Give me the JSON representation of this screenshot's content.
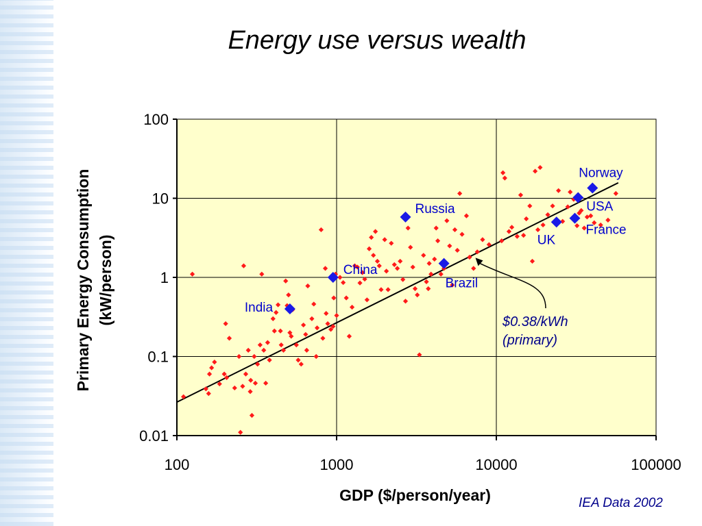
{
  "title": "Energy use versus wealth",
  "source_note": "IEA Data 2002",
  "colors": {
    "plot_background": "#ffffcc",
    "country_point": "#ff1a1a",
    "highlight_point": "#1a1ae6",
    "highlight_label": "#0000cc",
    "trend_line": "#000000"
  },
  "chart_data": {
    "type": "scatter",
    "title": "Energy use versus wealth",
    "xlabel": "GDP ($/person/year)",
    "ylabel_lines": [
      "Primary Energy Consumption",
      "(kW/person)"
    ],
    "x_scale": "log",
    "y_scale": "log",
    "xlim": [
      100,
      100000
    ],
    "ylim": [
      0.01,
      100
    ],
    "x_ticks": [
      100,
      1000,
      10000,
      100000
    ],
    "x_tick_labels": [
      "100",
      "1000",
      "10000",
      "100000"
    ],
    "y_ticks": [
      0.01,
      0.1,
      1,
      10,
      100
    ],
    "y_tick_labels": [
      "0.01",
      "0.1",
      "1",
      "10",
      "100"
    ],
    "grid": true,
    "points": [
      [
        110,
        0.031
      ],
      [
        125,
        1.1
      ],
      [
        152,
        0.039
      ],
      [
        158,
        0.034
      ],
      [
        160,
        0.06
      ],
      [
        165,
        0.072
      ],
      [
        172,
        0.085
      ],
      [
        185,
        0.045
      ],
      [
        198,
        0.06
      ],
      [
        202,
        0.26
      ],
      [
        205,
        0.054
      ],
      [
        213,
        0.17
      ],
      [
        230,
        0.04
      ],
      [
        245,
        0.1
      ],
      [
        250,
        0.011
      ],
      [
        258,
        0.042
      ],
      [
        262,
        1.4
      ],
      [
        270,
        0.06
      ],
      [
        280,
        0.12
      ],
      [
        288,
        0.036
      ],
      [
        290,
        0.05
      ],
      [
        295,
        0.018
      ],
      [
        305,
        0.1
      ],
      [
        310,
        0.046
      ],
      [
        320,
        0.08
      ],
      [
        332,
        0.14
      ],
      [
        340,
        1.1
      ],
      [
        350,
        0.12
      ],
      [
        360,
        0.046
      ],
      [
        370,
        0.15
      ],
      [
        380,
        0.09
      ],
      [
        400,
        0.3
      ],
      [
        408,
        0.21
      ],
      [
        418,
        0.36
      ],
      [
        430,
        0.45
      ],
      [
        445,
        0.21
      ],
      [
        450,
        0.14
      ],
      [
        465,
        0.12
      ],
      [
        480,
        0.9
      ],
      [
        490,
        0.44
      ],
      [
        500,
        0.6
      ],
      [
        510,
        0.2
      ],
      [
        520,
        0.18
      ],
      [
        530,
        0.39
      ],
      [
        560,
        0.14
      ],
      [
        575,
        0.09
      ],
      [
        600,
        0.08
      ],
      [
        620,
        0.25
      ],
      [
        640,
        0.19
      ],
      [
        650,
        0.12
      ],
      [
        660,
        0.78
      ],
      [
        700,
        0.3
      ],
      [
        720,
        0.46
      ],
      [
        745,
        0.1
      ],
      [
        755,
        0.23
      ],
      [
        800,
        4.0
      ],
      [
        820,
        0.17
      ],
      [
        850,
        1.3
      ],
      [
        860,
        0.35
      ],
      [
        880,
        0.26
      ],
      [
        920,
        0.22
      ],
      [
        950,
        0.24
      ],
      [
        960,
        0.55
      ],
      [
        985,
        1.1
      ],
      [
        1000,
        0.33
      ],
      [
        1050,
        1.0
      ],
      [
        1100,
        0.86
      ],
      [
        1150,
        0.55
      ],
      [
        1200,
        0.18
      ],
      [
        1250,
        0.42
      ],
      [
        1300,
        1.4
      ],
      [
        1350,
        1.35
      ],
      [
        1400,
        0.85
      ],
      [
        1450,
        1.15
      ],
      [
        1500,
        0.95
      ],
      [
        1550,
        0.52
      ],
      [
        1600,
        2.3
      ],
      [
        1650,
        3.2
      ],
      [
        1700,
        1.9
      ],
      [
        1750,
        3.8
      ],
      [
        1800,
        1.6
      ],
      [
        1850,
        1.4
      ],
      [
        1900,
        0.7
      ],
      [
        2000,
        3.0
      ],
      [
        2050,
        1.2
      ],
      [
        2100,
        0.7
      ],
      [
        2200,
        2.7
      ],
      [
        2300,
        1.45
      ],
      [
        2400,
        1.3
      ],
      [
        2500,
        1.6
      ],
      [
        2600,
        0.94
      ],
      [
        2700,
        0.5
      ],
      [
        2800,
        4.2
      ],
      [
        2900,
        2.4
      ],
      [
        3000,
        1.35
      ],
      [
        3100,
        0.72
      ],
      [
        3200,
        0.6
      ],
      [
        3300,
        0.105
      ],
      [
        3500,
        1.9
      ],
      [
        3650,
        0.88
      ],
      [
        3750,
        0.72
      ],
      [
        3800,
        1.5
      ],
      [
        3900,
        1.1
      ],
      [
        4100,
        1.7
      ],
      [
        4200,
        4.2
      ],
      [
        4300,
        2.9
      ],
      [
        4500,
        1.1
      ],
      [
        4700,
        1.3
      ],
      [
        4900,
        5.2
      ],
      [
        5100,
        2.5
      ],
      [
        5300,
        0.8
      ],
      [
        5500,
        4.0
      ],
      [
        5700,
        2.2
      ],
      [
        5900,
        11.5
      ],
      [
        6100,
        3.5
      ],
      [
        6500,
        6.0
      ],
      [
        6800,
        1.8
      ],
      [
        7200,
        1.3
      ],
      [
        7600,
        2.1
      ],
      [
        8200,
        3.0
      ],
      [
        9000,
        2.6
      ],
      [
        10800,
        2.9
      ],
      [
        11000,
        21.0
      ],
      [
        11300,
        18.0
      ],
      [
        12000,
        3.8
      ],
      [
        12500,
        4.3
      ],
      [
        13500,
        3.3
      ],
      [
        14200,
        11.0
      ],
      [
        14800,
        3.4
      ],
      [
        15400,
        5.5
      ],
      [
        16200,
        8.0
      ],
      [
        16800,
        1.6
      ],
      [
        17500,
        22.0
      ],
      [
        18200,
        4.0
      ],
      [
        18800,
        24.5
      ],
      [
        19600,
        4.6
      ],
      [
        21000,
        6.2
      ],
      [
        22500,
        8.0
      ],
      [
        24500,
        12.5
      ],
      [
        26000,
        5.1
      ],
      [
        28000,
        7.8
      ],
      [
        29000,
        12.0
      ],
      [
        30500,
        9.7
      ],
      [
        32000,
        4.5
      ],
      [
        33000,
        6.5
      ],
      [
        34000,
        7.0
      ],
      [
        35500,
        4.2
      ],
      [
        37000,
        5.8
      ],
      [
        39000,
        6.0
      ],
      [
        41000,
        4.9
      ],
      [
        45000,
        4.6
      ],
      [
        50000,
        5.3
      ],
      [
        56000,
        11.5
      ]
    ],
    "highlighted": [
      {
        "label": "India",
        "x": 510,
        "y": 0.4
      },
      {
        "label": "China",
        "x": 950,
        "y": 1.0
      },
      {
        "label": "Russia",
        "x": 2700,
        "y": 5.8
      },
      {
        "label": "Brazil",
        "x": 4700,
        "y": 1.5
      },
      {
        "label": "UK",
        "x": 23800,
        "y": 5.0
      },
      {
        "label": "France",
        "x": 31000,
        "y": 5.6
      },
      {
        "label": "USA",
        "x": 32500,
        "y": 10.2
      },
      {
        "label": "Norway",
        "x": 40000,
        "y": 13.5
      }
    ],
    "trend_line": {
      "from": [
        100,
        0.0265
      ],
      "to": [
        58000,
        15.7
      ],
      "annotation_lines": [
        "$0.38/kWh",
        "(primary)"
      ],
      "annotation_target": [
        7400,
        1.88
      ]
    }
  }
}
